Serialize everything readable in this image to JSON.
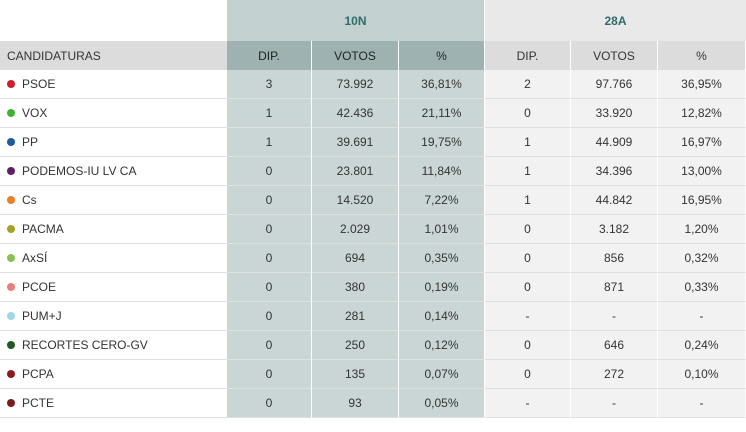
{
  "periods": {
    "first": "10N",
    "second": "28A"
  },
  "headers": {
    "candidaturas": "CANDIDATURAS",
    "dip": "DIP.",
    "votos": "VOTOS",
    "pct": "%"
  },
  "rows": [
    {
      "name": "PSOE",
      "color": "#d41c2b",
      "n_dip": "3",
      "n_votos": "73.992",
      "n_pct": "36,81%",
      "a_dip": "2",
      "a_votos": "97.766",
      "a_pct": "36,95%"
    },
    {
      "name": "VOX",
      "color": "#3cb333",
      "n_dip": "1",
      "n_votos": "42.436",
      "n_pct": "21,11%",
      "a_dip": "0",
      "a_votos": "33.920",
      "a_pct": "12,82%"
    },
    {
      "name": "PP",
      "color": "#1d5b9e",
      "n_dip": "1",
      "n_votos": "39.691",
      "n_pct": "19,75%",
      "a_dip": "1",
      "a_votos": "44.909",
      "a_pct": "16,97%"
    },
    {
      "name": "PODEMOS-IU LV CA",
      "color": "#5e1f66",
      "n_dip": "0",
      "n_votos": "23.801",
      "n_pct": "11,84%",
      "a_dip": "1",
      "a_votos": "34.396",
      "a_pct": "13,00%"
    },
    {
      "name": "Cs",
      "color": "#f07b28",
      "n_dip": "0",
      "n_votos": "14.520",
      "n_pct": "7,22%",
      "a_dip": "1",
      "a_votos": "44.842",
      "a_pct": "16,95%"
    },
    {
      "name": "PACMA",
      "color": "#a5a325",
      "n_dip": "0",
      "n_votos": "2.029",
      "n_pct": "1,01%",
      "a_dip": "0",
      "a_votos": "3.182",
      "a_pct": "1,20%"
    },
    {
      "name": "AxSÍ",
      "color": "#8cc051",
      "n_dip": "0",
      "n_votos": "694",
      "n_pct": "0,35%",
      "a_dip": "0",
      "a_votos": "856",
      "a_pct": "0,32%"
    },
    {
      "name": "PCOE",
      "color": "#ec7d7d",
      "n_dip": "0",
      "n_votos": "380",
      "n_pct": "0,19%",
      "a_dip": "0",
      "a_votos": "871",
      "a_pct": "0,33%"
    },
    {
      "name": "PUM+J",
      "color": "#9fd5ea",
      "n_dip": "0",
      "n_votos": "281",
      "n_pct": "0,14%",
      "a_dip": "-",
      "a_votos": "-",
      "a_pct": "-"
    },
    {
      "name": "RECORTES CERO-GV",
      "color": "#1f5a24",
      "n_dip": "0",
      "n_votos": "250",
      "n_pct": "0,12%",
      "a_dip": "0",
      "a_votos": "646",
      "a_pct": "0,24%"
    },
    {
      "name": "PCPA",
      "color": "#8c1b1b",
      "n_dip": "0",
      "n_votos": "135",
      "n_pct": "0,07%",
      "a_dip": "0",
      "a_votos": "272",
      "a_pct": "0,10%"
    },
    {
      "name": "PCTE",
      "color": "#7a1c1c",
      "n_dip": "0",
      "n_votos": "93",
      "n_pct": "0,05%",
      "a_dip": "-",
      "a_votos": "-",
      "a_pct": "-"
    }
  ]
}
